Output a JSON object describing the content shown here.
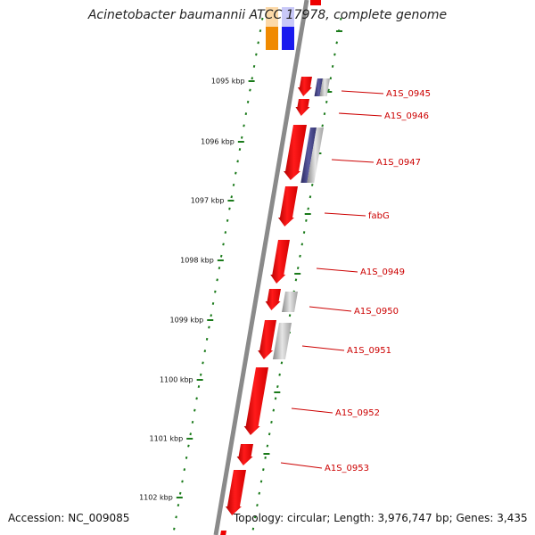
{
  "title": "Acinetobacter baumannii ATCC 17978, complete genome",
  "footer": {
    "accession": "Accession: NC_009085",
    "topology": "Topology: circular; Length: 3,976,747 bp; Genes: 3,435"
  },
  "colors": {
    "gene_red": "#ee0000",
    "backbone": "#8a8a8a",
    "tick_green": "#1a7a1a",
    "label_red": "#cc0000",
    "gray_feature": "#b5b5b5",
    "navy_feature": "#3a3a7a",
    "orange_feature": "#f08a00",
    "blue_feature": "#1a1aee"
  },
  "kbp_markers": [
    {
      "label": "1095 kbp"
    },
    {
      "label": "1096 kbp"
    },
    {
      "label": "1097 kbp"
    },
    {
      "label": "1098 kbp"
    },
    {
      "label": "1099 kbp"
    },
    {
      "label": "1100 kbp"
    },
    {
      "label": "1101 kbp"
    },
    {
      "label": "1102 kbp"
    }
  ],
  "gene_labels": [
    {
      "label": "A1S_0945"
    },
    {
      "label": "A1S_0946"
    },
    {
      "label": "A1S_0947"
    },
    {
      "label": "fabG"
    },
    {
      "label": "A1S_0949"
    },
    {
      "label": "A1S_0950"
    },
    {
      "label": "A1S_0951"
    },
    {
      "label": "A1S_0952"
    },
    {
      "label": "A1S_0953"
    }
  ]
}
